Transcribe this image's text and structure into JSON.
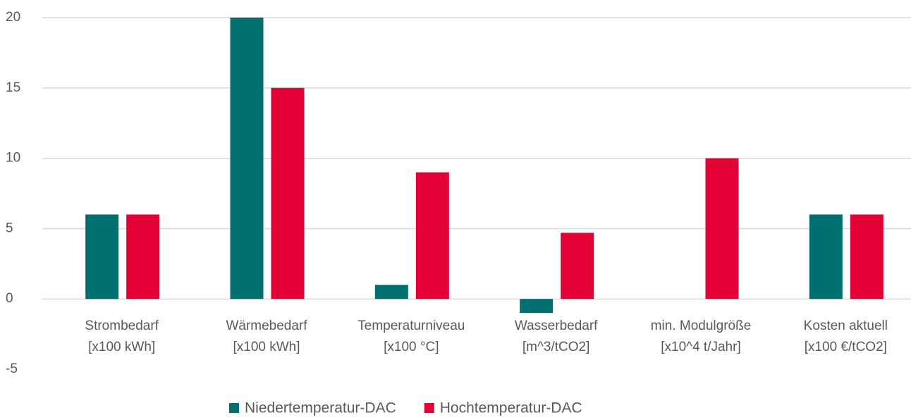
{
  "chart_data": {
    "type": "bar",
    "categories": [
      [
        "Strombedarf",
        "[x100 kWh]"
      ],
      [
        "Wärmebedarf",
        "[x100 kWh]"
      ],
      [
        "Temperaturniveau",
        "[x100 °C]"
      ],
      [
        "Wasserbedarf",
        "[m^3/tCO2]"
      ],
      [
        "min. Modulgröße",
        "[x10^4 t/Jahr]"
      ],
      [
        "Kosten aktuell",
        "[x100 €/tCO2]"
      ]
    ],
    "series": [
      {
        "name": "Niedertemperatur-DAC",
        "color": "#006f6f",
        "values": [
          6,
          20,
          1,
          -1,
          null,
          6
        ]
      },
      {
        "name": "Hochtemperatur-DAC",
        "color": "#e20035",
        "values": [
          6,
          15,
          9,
          4.7,
          10,
          6
        ]
      }
    ],
    "ylim": [
      -5,
      20
    ],
    "yticks": [
      -5,
      0,
      5,
      10,
      15,
      20
    ],
    "grid": true,
    "legend": "bottom"
  }
}
